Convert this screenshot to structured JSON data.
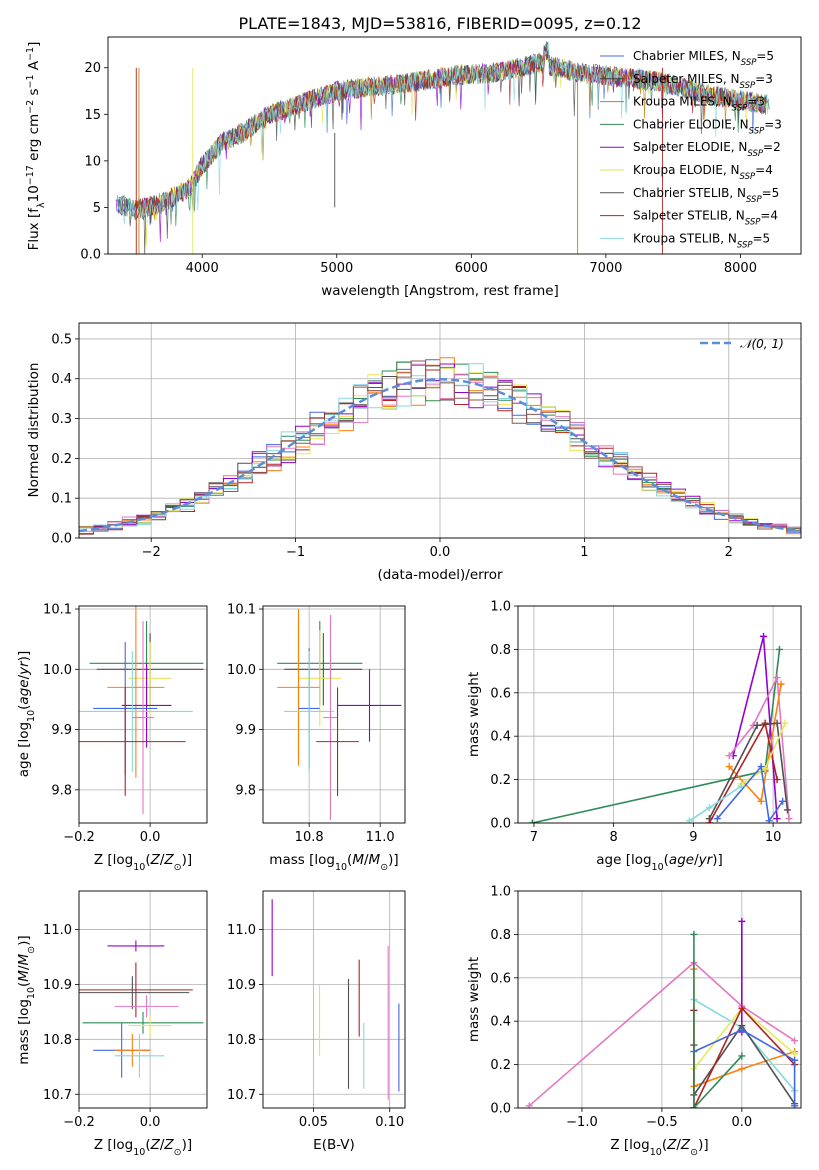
{
  "title": "PLATE=1843, MJD=53816, FIBERID=0095, z=0.12",
  "colors": {
    "Chabrier MILES": "#4169e1",
    "Salpeter MILES": "#404040",
    "Kroupa MILES": "#b8860b",
    "Chabrier ELODIE": "#2e8b57",
    "Salpeter ELODIE": "#9400d3",
    "Kroupa ELODIE": "#e6e65a",
    "Chabrier STELIB": "#505050",
    "Salpeter STELIB": "#b22222",
    "Kroupa STELIB": "#87d8e0"
  },
  "chart_data": [
    {
      "type": "line",
      "name": "spectrum",
      "xlabel": "wavelength [Angstrom, rest frame]",
      "ylabel": "Flux [f_λ10^-17 erg cm^-2 s^-1 A^-1]",
      "xlim": [
        3300,
        8450
      ],
      "ylim": [
        0,
        23.3
      ],
      "xticks": [
        4000,
        5000,
        6000,
        7000,
        8000
      ],
      "yticks": [
        0,
        5,
        10,
        15,
        20
      ],
      "grid": false,
      "legend_position": "right",
      "legend": [
        {
          "label": "Chabrier MILES",
          "nssp": "5",
          "color": "#4169e1"
        },
        {
          "label": "Salpeter MILES",
          "nssp": "3",
          "color": "#404040"
        },
        {
          "label": "Kroupa MILES",
          "nssp": "3",
          "color": "#b8860b"
        },
        {
          "label": "Chabrier ELODIE",
          "nssp": "3",
          "color": "#2e8b57"
        },
        {
          "label": "Salpeter ELODIE",
          "nssp": "2",
          "color": "#9400d3"
        },
        {
          "label": "Kroupa ELODIE",
          "nssp": "4",
          "color": "#e6e65a"
        },
        {
          "label": "Chabrier STELIB",
          "nssp": "5",
          "color": "#505050"
        },
        {
          "label": "Salpeter STELIB",
          "nssp": "4",
          "color": "#b22222"
        },
        {
          "label": "Kroupa STELIB",
          "nssp": "5",
          "color": "#87d8e0"
        }
      ],
      "continuum_x": [
        3360,
        3500,
        3700,
        3900,
        4000,
        4150,
        4300,
        4500,
        4800,
        5000,
        5300,
        5600,
        5900,
        6200,
        6500,
        6800,
        7100,
        7400,
        7800,
        8200
      ],
      "continuum_y": [
        5.5,
        4.7,
        5.5,
        7.0,
        9.5,
        12.0,
        13.0,
        15.0,
        16.5,
        17.5,
        18.0,
        18.5,
        19.2,
        19.5,
        20.5,
        19.5,
        19.0,
        18.5,
        17.0,
        16.0
      ]
    },
    {
      "type": "histogram",
      "name": "residuals",
      "xlabel": "(data-model)/error",
      "ylabel": "Normed distribution",
      "xlim": [
        -2.5,
        2.5
      ],
      "ylim": [
        0,
        0.54
      ],
      "xticks": [
        -2,
        -1,
        0,
        1,
        2
      ],
      "yticks": [
        0.0,
        0.1,
        0.2,
        0.3,
        0.4,
        0.5
      ],
      "grid": true,
      "legend_position": "top-right",
      "legend": [
        "𝒩(0, 1)"
      ],
      "bin_width": 0.1,
      "gaussian": {
        "mean": 0,
        "sigma": 1
      }
    },
    {
      "type": "scatter",
      "name": "age-vs-Z",
      "xlabel": "Z [log10(Z/Z⊙)]",
      "ylabel": "age [log10(age/yr)]",
      "xlim": [
        -0.2,
        0.16
      ],
      "ylim": [
        9.745,
        10.105
      ],
      "xticks": [
        -0.2,
        0.0
      ],
      "yticks": [
        9.8,
        9.9,
        10.0,
        10.1
      ],
      "grid": true,
      "points": [
        {
          "x": -0.01,
          "y": 10.01,
          "xerr": 0.16,
          "yerr": 0.07,
          "color": "#2e8b57"
        },
        {
          "x": 0.0,
          "y": 10.0,
          "xerr": 0.15,
          "yerr": 0.06,
          "color": "#505050"
        },
        {
          "x": 0.0,
          "y": 9.985,
          "xerr": 0.06,
          "yerr": 0.06,
          "color": "#e6e65a"
        },
        {
          "x": -0.04,
          "y": 9.97,
          "xerr": 0.08,
          "yerr": 0.15,
          "color": "#ff7f0e"
        },
        {
          "x": -0.01,
          "y": 9.94,
          "xerr": 0.07,
          "yerr": 0.07,
          "color": "#9400d3"
        },
        {
          "x": -0.07,
          "y": 9.935,
          "xerr": 0.09,
          "yerr": 0.11,
          "color": "#4169e1"
        },
        {
          "x": -0.05,
          "y": 9.93,
          "xerr": 0.17,
          "yerr": 0.1,
          "color": "#87d8e0"
        },
        {
          "x": -0.02,
          "y": 9.92,
          "xerr": 0.03,
          "yerr": 0.16,
          "color": "#e377c2"
        },
        {
          "x": -0.07,
          "y": 9.88,
          "xerr": 0.17,
          "yerr": 0.09,
          "color": "#b22222"
        }
      ]
    },
    {
      "type": "scatter",
      "name": "age-vs-mass",
      "xlabel": "mass [log10(M/M⊙)]",
      "ylabel": "",
      "xlim": [
        10.67,
        11.07
      ],
      "ylim": [
        9.745,
        10.105
      ],
      "xticks": [
        10.8,
        11.0
      ],
      "yticks": [
        9.8,
        9.9,
        10.0,
        10.1
      ],
      "grid": true,
      "points": [
        {
          "x": 10.83,
          "y": 10.01,
          "xerr": 0.12,
          "yerr": 0.07,
          "color": "#2e8b57"
        },
        {
          "x": 10.84,
          "y": 10.0,
          "xerr": 0.11,
          "yerr": 0.06,
          "color": "#505050"
        },
        {
          "x": 10.83,
          "y": 9.985,
          "xerr": 0.06,
          "yerr": 0.08,
          "color": "#e6e65a"
        },
        {
          "x": 10.77,
          "y": 9.97,
          "xerr": 0.06,
          "yerr": 0.13,
          "color": "#ff7f0e"
        },
        {
          "x": 10.97,
          "y": 9.94,
          "xerr": 0.09,
          "yerr": 0.06,
          "color": "#9400d3"
        },
        {
          "x": 10.8,
          "y": 9.935,
          "xerr": 0.03,
          "yerr": 0.1,
          "color": "#4169e1"
        },
        {
          "x": 10.8,
          "y": 9.93,
          "xerr": 0.07,
          "yerr": 0.1,
          "color": "#87d8e0"
        },
        {
          "x": 10.86,
          "y": 9.92,
          "xerr": 0.02,
          "yerr": 0.17,
          "color": "#e377c2"
        },
        {
          "x": 10.88,
          "y": 9.88,
          "xerr": 0.06,
          "yerr": 0.09,
          "color": "#b22222"
        }
      ]
    },
    {
      "type": "line",
      "name": "mass-weight-vs-age",
      "xlabel": "age [log10(age/yr)]",
      "ylabel": "mass weight",
      "xlim": [
        6.8,
        10.35
      ],
      "ylim": [
        0,
        1
      ],
      "xticks": [
        7,
        8,
        9,
        10
      ],
      "yticks": [
        0.0,
        0.2,
        0.4,
        0.6,
        0.8,
        1.0
      ],
      "grid": true,
      "series": [
        {
          "color": "#2e8b57",
          "x": [
            6.98,
            9.9,
            10.08
          ],
          "y": [
            0.0,
            0.24,
            0.8
          ]
        },
        {
          "color": "#9400d3",
          "x": [
            9.5,
            9.88,
            10.05
          ],
          "y": [
            0.31,
            0.86,
            0.02
          ]
        },
        {
          "color": "#e377c2",
          "x": [
            9.45,
            9.75,
            10.05,
            10.2
          ],
          "y": [
            0.31,
            0.45,
            0.67,
            0.02
          ]
        },
        {
          "color": "#ff7f0e",
          "x": [
            9.45,
            9.85,
            10.1
          ],
          "y": [
            0.26,
            0.1,
            0.64
          ]
        },
        {
          "color": "#505050",
          "x": [
            9.2,
            9.8,
            10.05,
            10.18
          ],
          "y": [
            0.02,
            0.45,
            0.46,
            0.06
          ]
        },
        {
          "color": "#b22222",
          "x": [
            9.2,
            9.9,
            10.05
          ],
          "y": [
            0.0,
            0.46,
            0.2
          ]
        },
        {
          "color": "#e6e65a",
          "x": [
            9.6,
            9.9,
            10.15
          ],
          "y": [
            0.18,
            0.25,
            0.46
          ]
        },
        {
          "color": "#4169e1",
          "x": [
            9.3,
            9.85,
            9.95,
            10.12
          ],
          "y": [
            0.02,
            0.26,
            0.01,
            0.1
          ]
        },
        {
          "color": "#87d8e0",
          "x": [
            8.95,
            9.2,
            9.6
          ],
          "y": [
            0.01,
            0.07,
            0.17
          ]
        }
      ]
    },
    {
      "type": "scatter",
      "name": "mass-vs-Z",
      "xlabel": "Z [log10(Z/Z⊙)]",
      "ylabel": "mass [log10(M/M⊙)]",
      "xlim": [
        -0.2,
        0.16
      ],
      "ylim": [
        10.675,
        11.07
      ],
      "xticks": [
        -0.2,
        0.0
      ],
      "yticks": [
        10.7,
        10.8,
        10.9,
        11.0
      ],
      "grid": true,
      "points": [
        {
          "x": -0.04,
          "y": 10.97,
          "xerr": 0.08,
          "yerr": 0.01,
          "color": "#9400d3"
        },
        {
          "x": -0.04,
          "y": 10.89,
          "xerr": 0.16,
          "yerr": 0.05,
          "color": "#b22222"
        },
        {
          "x": -0.05,
          "y": 10.885,
          "xerr": 0.16,
          "yerr": 0.03,
          "color": "#505050"
        },
        {
          "x": -0.01,
          "y": 10.86,
          "xerr": 0.09,
          "yerr": 0.02,
          "color": "#e377c2"
        },
        {
          "x": -0.02,
          "y": 10.83,
          "xerr": 0.17,
          "yerr": 0.02,
          "color": "#2e8b57"
        },
        {
          "x": 0.0,
          "y": 10.825,
          "xerr": 0.06,
          "yerr": 0.02,
          "color": "#e6e65a"
        },
        {
          "x": -0.08,
          "y": 10.78,
          "xerr": 0.08,
          "yerr": 0.05,
          "color": "#4169e1"
        },
        {
          "x": -0.05,
          "y": 10.78,
          "xerr": 0.05,
          "yerr": 0.03,
          "color": "#ff7f0e"
        },
        {
          "x": -0.03,
          "y": 10.77,
          "xerr": 0.07,
          "yerr": 0.04,
          "color": "#87d8e0"
        }
      ]
    },
    {
      "type": "scatter",
      "name": "mass-vs-ebv",
      "xlabel": "E(B-V)",
      "ylabel": "",
      "xlim": [
        0.017,
        0.11
      ],
      "ylim": [
        10.675,
        11.07
      ],
      "xticks": [
        0.05,
        0.1
      ],
      "yticks": [
        10.7,
        10.8,
        10.9,
        11.0
      ],
      "grid": true,
      "points": [
        {
          "x": 0.023,
          "y": 10.985,
          "yerr": 0.07,
          "color": "#9400d3"
        },
        {
          "x": 0.054,
          "y": 10.835,
          "yerr": 0.065,
          "color": "#e6e65a"
        },
        {
          "x": 0.073,
          "y": 10.81,
          "yerr": 0.1,
          "color": "#505050"
        },
        {
          "x": 0.08,
          "y": 10.875,
          "yerr": 0.07,
          "color": "#b22222"
        },
        {
          "x": 0.083,
          "y": 10.77,
          "yerr": 0.06,
          "color": "#87d8e0"
        },
        {
          "x": 0.099,
          "y": 10.83,
          "yerr": 0.14,
          "color": "#e377c2"
        },
        {
          "x": 0.106,
          "y": 10.785,
          "yerr": 0.08,
          "color": "#4169e1"
        }
      ]
    },
    {
      "type": "line",
      "name": "mass-weight-vs-Z",
      "xlabel": "Z [log10(Z/Z⊙)]",
      "ylabel": "mass weight",
      "xlim": [
        -1.4,
        0.37
      ],
      "ylim": [
        0,
        1
      ],
      "xticks": [
        -1.0,
        -0.5,
        0.0
      ],
      "yticks": [
        0.0,
        0.2,
        0.4,
        0.6,
        0.8,
        1.0
      ],
      "grid": true,
      "series": [
        {
          "color": "#e377c2",
          "x": [
            -1.33,
            -0.3,
            0.0,
            0.33
          ],
          "y": [
            0.01,
            0.67,
            0.47,
            0.31
          ]
        },
        {
          "color": "#9400d3",
          "x": [
            0.0,
            0.0
          ],
          "y": [
            0.86,
            0.35
          ]
        },
        {
          "color": "#ff7f0e",
          "x": [
            -0.3,
            -0.3,
            0.0,
            0.33
          ],
          "y": [
            0.64,
            0.1,
            0.18,
            0.26
          ]
        },
        {
          "color": "#87d8e0",
          "x": [
            -0.3,
            0.0,
            0.33,
            0.33
          ],
          "y": [
            0.5,
            0.37,
            0.08,
            0.01
          ]
        },
        {
          "color": "#e6e65a",
          "x": [
            -0.3,
            0.0,
            0.33
          ],
          "y": [
            0.18,
            0.46,
            0.25
          ]
        },
        {
          "color": "#505050",
          "x": [
            -0.3,
            -0.3,
            0.0,
            0.33
          ],
          "y": [
            0.29,
            0.06,
            0.38,
            0.02
          ]
        },
        {
          "color": "#b22222",
          "x": [
            -0.3,
            -0.3,
            0.0,
            0.33
          ],
          "y": [
            0.45,
            0.0,
            0.46,
            0.2
          ]
        },
        {
          "color": "#4169e1",
          "x": [
            -0.3,
            0.0,
            0.33,
            0.33
          ],
          "y": [
            0.26,
            0.36,
            0.22,
            0.01
          ]
        },
        {
          "color": "#2e8b57",
          "x": [
            -0.3,
            -0.3,
            0.0
          ],
          "y": [
            0.8,
            0.0,
            0.24
          ]
        }
      ]
    }
  ]
}
